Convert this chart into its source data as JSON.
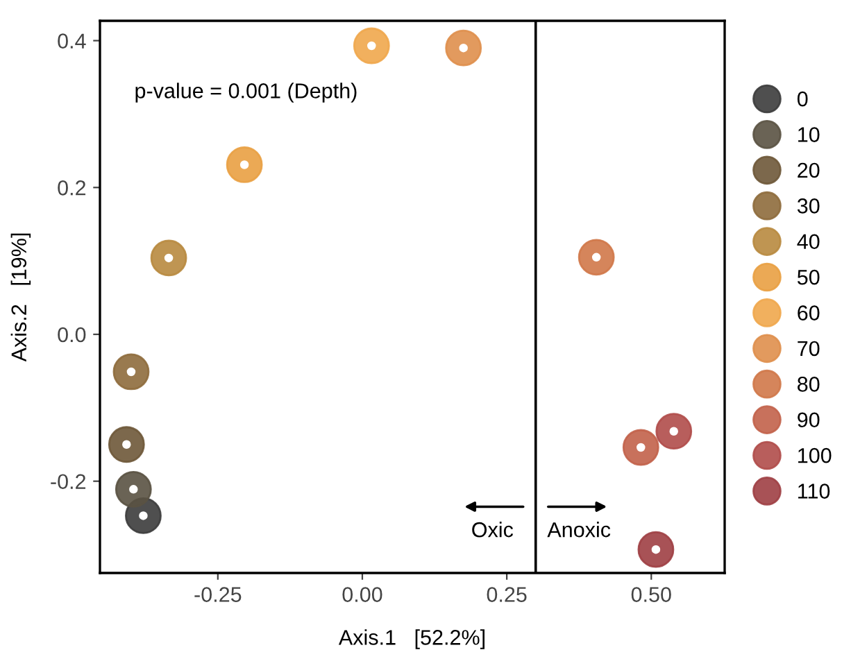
{
  "chart_data": {
    "type": "scatter",
    "xlabel": "Axis.1   [52.2%]",
    "ylabel": "Axis.2   [19%]",
    "xlim": [
      -0.454,
      0.627
    ],
    "ylim": [
      -0.325,
      0.427
    ],
    "xticks": [
      -0.25,
      {
        "value": 0,
        "label": "0.00"
      },
      0.25,
      {
        "value": 0.5,
        "label": "0.50"
      }
    ],
    "yticks": [
      -0.2,
      {
        "value": 0,
        "label": "0.0"
      },
      0.2,
      0.4
    ],
    "grid": false,
    "legend": "right",
    "marker": "circle",
    "ref_lines": [
      {
        "axis": "x",
        "value": 0.3,
        "color": "#000000"
      }
    ],
    "annotations": [
      "p-value = 0.001 (Depth)",
      "Oxic",
      "Anoxic"
    ],
    "series": [
      {
        "name": "0",
        "color": "#3c3c3c",
        "x": [
          -0.379
        ],
        "values": [
          -0.247
        ]
      },
      {
        "name": "10",
        "color": "#5a5242",
        "x": [
          -0.396
        ],
        "values": [
          -0.211
        ]
      },
      {
        "name": "20",
        "color": "#6e5838",
        "x": [
          -0.408
        ],
        "values": [
          -0.15
        ]
      },
      {
        "name": "30",
        "color": "#8e6c3c",
        "x": [
          -0.4
        ],
        "values": [
          -0.051
        ]
      },
      {
        "name": "40",
        "color": "#b8893f",
        "x": [
          -0.335
        ],
        "values": [
          0.104
        ]
      },
      {
        "name": "50",
        "color": "#e9a043",
        "x": [
          -0.204
        ],
        "values": [
          0.231
        ]
      },
      {
        "name": "60",
        "color": "#f0a74c",
        "x": [
          0.016
        ],
        "values": [
          0.393
        ]
      },
      {
        "name": "70",
        "color": "#df8f4c",
        "x": [
          0.175
        ],
        "values": [
          0.39
        ]
      },
      {
        "name": "80",
        "color": "#d07849",
        "x": [
          0.405
        ],
        "values": [
          0.105
        ]
      },
      {
        "name": "90",
        "color": "#c2624a",
        "x": [
          0.482
        ],
        "values": [
          -0.154
        ]
      },
      {
        "name": "100",
        "color": "#b04c4a",
        "x": [
          0.539
        ],
        "values": [
          -0.132
        ]
      },
      {
        "name": "110",
        "color": "#9e3f44",
        "x": [
          0.508
        ],
        "values": [
          -0.293
        ]
      }
    ]
  }
}
